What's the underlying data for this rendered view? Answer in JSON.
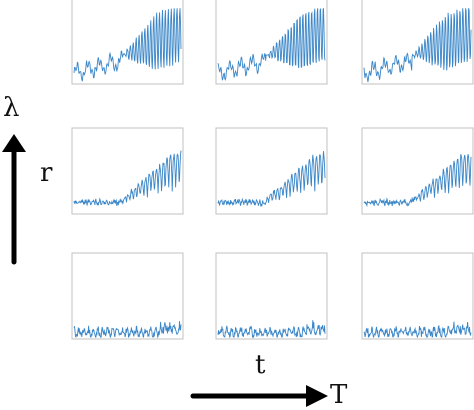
{
  "labels": {
    "lambda": "λ",
    "r": "r",
    "t": "t",
    "T": "T"
  },
  "colors": {
    "signal": "#3a86c8",
    "frame": "#c0c0c0",
    "arrow": "#000000"
  },
  "panels": [
    {
      "row": 0,
      "col": 0,
      "amplitude": "large"
    },
    {
      "row": 0,
      "col": 1,
      "amplitude": "large"
    },
    {
      "row": 0,
      "col": 2,
      "amplitude": "large"
    },
    {
      "row": 1,
      "col": 0,
      "amplitude": "medium"
    },
    {
      "row": 1,
      "col": 1,
      "amplitude": "medium"
    },
    {
      "row": 1,
      "col": 2,
      "amplitude": "medium"
    },
    {
      "row": 2,
      "col": 0,
      "amplitude": "small"
    },
    {
      "row": 2,
      "col": 1,
      "amplitude": "small"
    },
    {
      "row": 2,
      "col": 2,
      "amplitude": "small"
    }
  ]
}
